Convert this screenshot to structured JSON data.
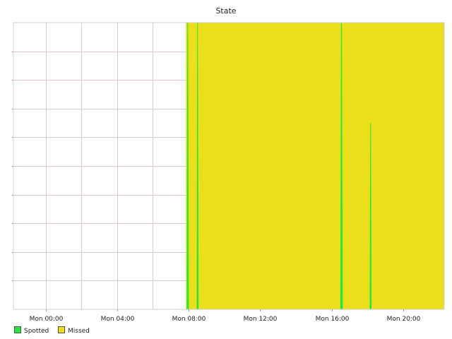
{
  "chart_data": {
    "type": "area",
    "title": "State",
    "xlabel": "",
    "ylabel": "",
    "x_unit": "hours since Mon 00:00 (display only)",
    "xlim": [
      -1.8,
      22.3
    ],
    "ylim": [
      0,
      1
    ],
    "grid": true,
    "x_ticks": [
      {
        "value": 0,
        "label": "Mon 00:00"
      },
      {
        "value": 4,
        "label": "Mon 04:00"
      },
      {
        "value": 8,
        "label": "Mon 08:00"
      },
      {
        "value": 12,
        "label": "Mon 12:00"
      },
      {
        "value": 16,
        "label": "Mon 16:00"
      },
      {
        "value": 20,
        "label": "Mon 20:00"
      }
    ],
    "x_minor_grid": [
      -2,
      0,
      2,
      4,
      6,
      8,
      10,
      12,
      14,
      16,
      18,
      20,
      22
    ],
    "y_grid_count": 10,
    "legend_position": "bottom-left",
    "series": [
      {
        "name": "Spotted",
        "color": "#22e83a",
        "spikes": [
          {
            "x": 7.95,
            "width": 0.14,
            "height": 1.0
          },
          {
            "x": 8.5,
            "width": 0.12,
            "height": 1.0
          },
          {
            "x": 16.55,
            "width": 0.16,
            "height": 1.0
          },
          {
            "x": 18.18,
            "width": 0.12,
            "height": 0.65
          }
        ]
      },
      {
        "name": "Missed",
        "color": "#ebdf1c",
        "x": [
          7.85,
          22.3
        ],
        "values": [
          1,
          1
        ]
      }
    ]
  }
}
